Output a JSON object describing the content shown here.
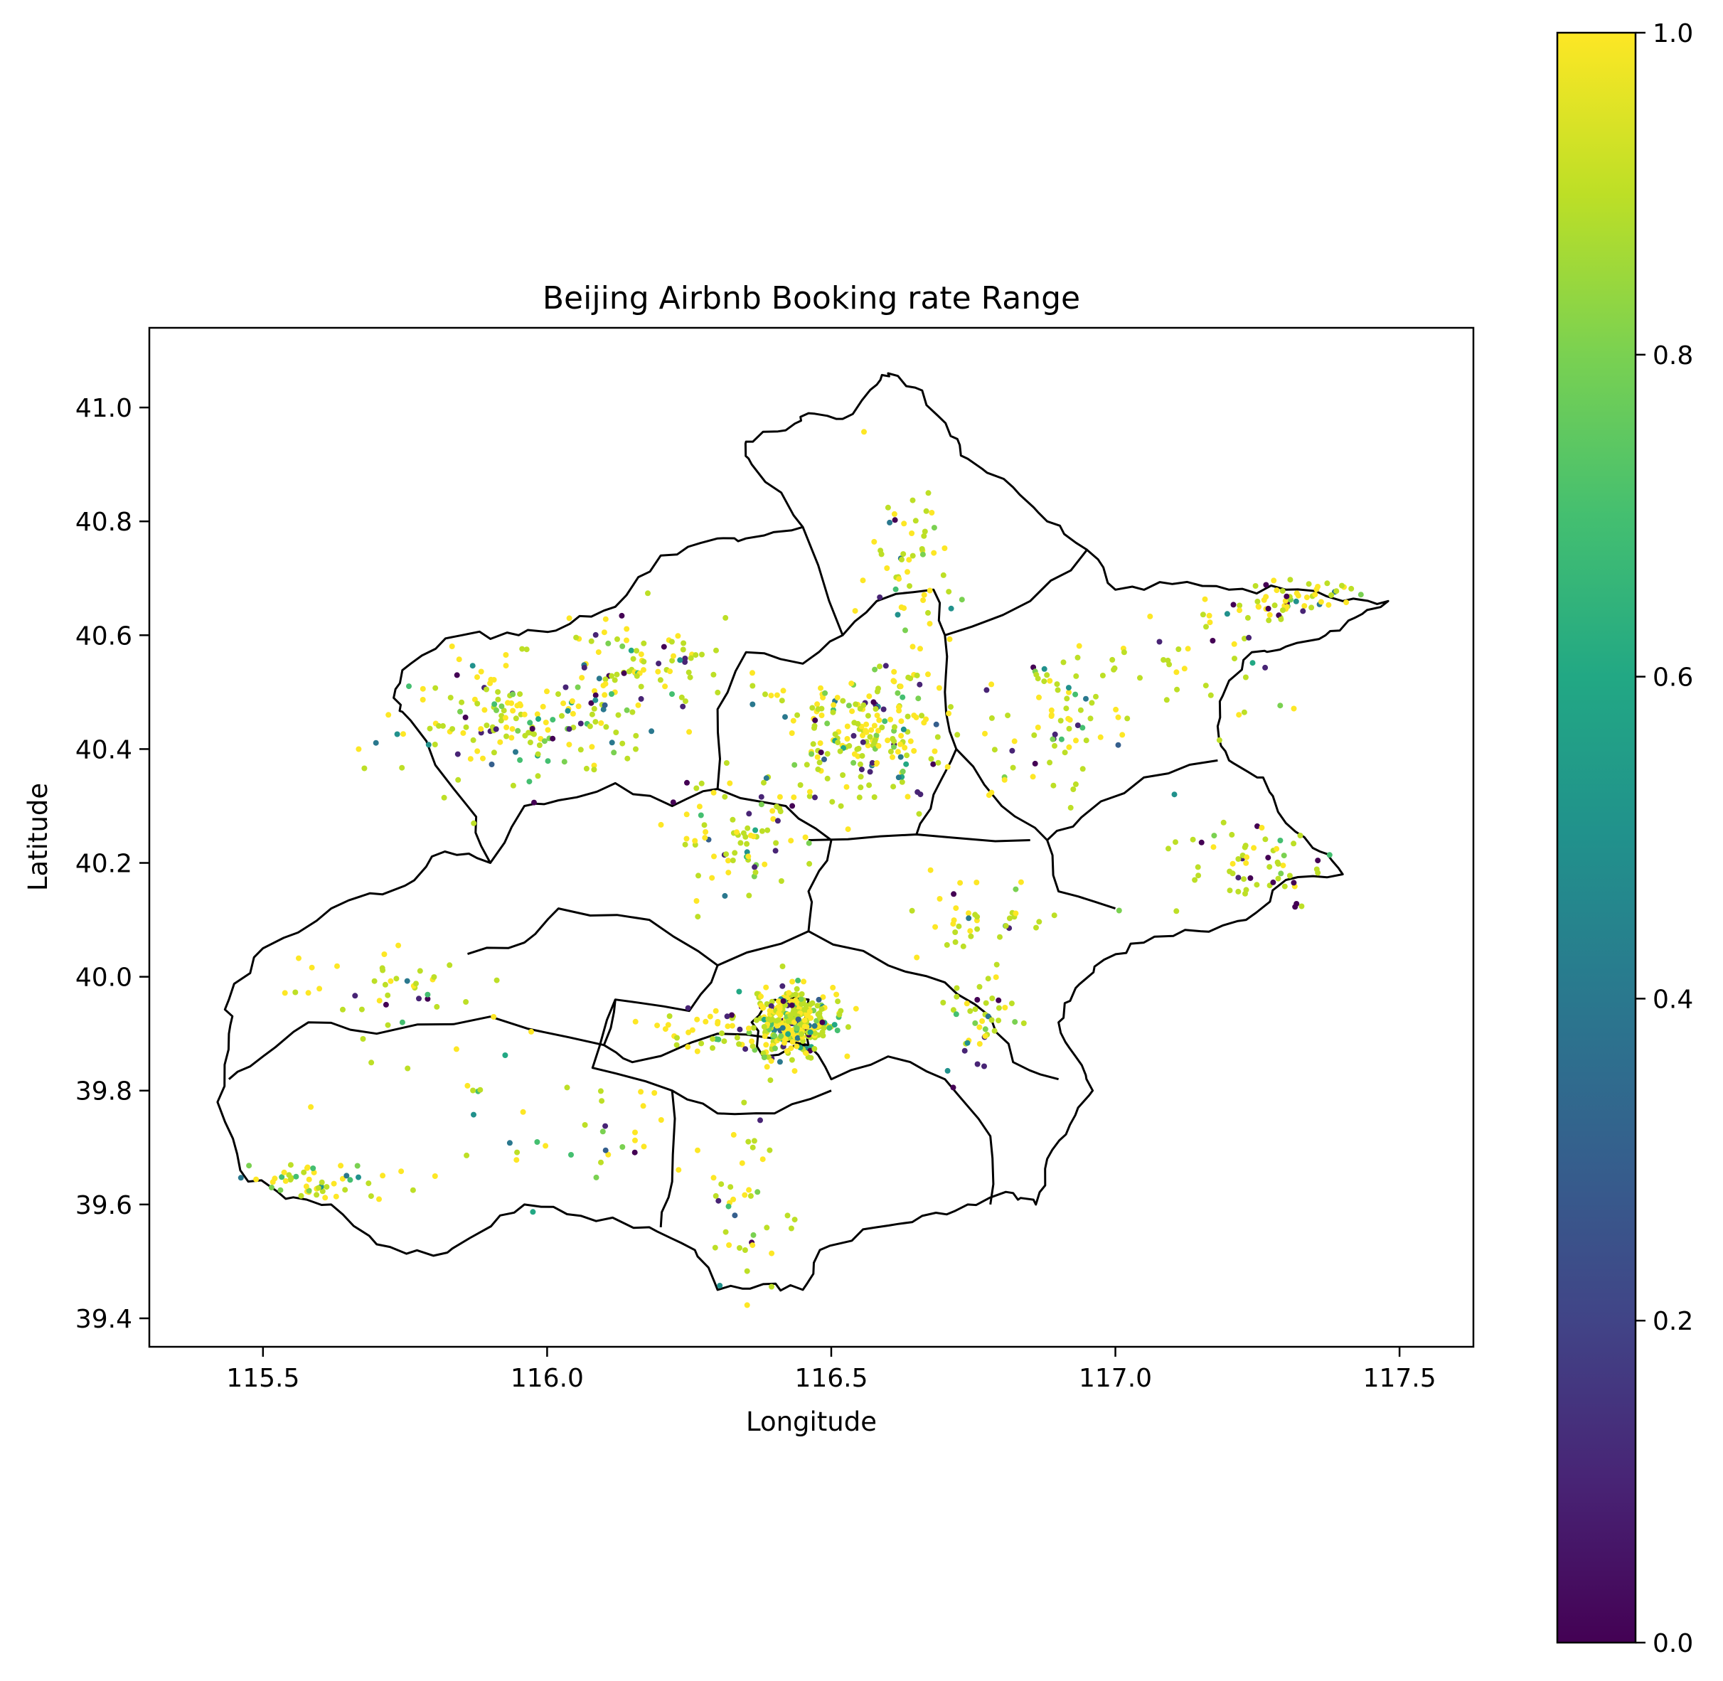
{
  "chart_data": {
    "type": "scatter",
    "title": "Beijing Airbnb Booking rate Range",
    "xlabel": "Longitude",
    "ylabel": "Latitude",
    "xlim": [
      115.3,
      117.63
    ],
    "ylim": [
      39.35,
      41.14
    ],
    "x_ticks": [
      115.5,
      116.0,
      116.5,
      117.0,
      117.5
    ],
    "y_ticks": [
      39.4,
      39.6,
      39.8,
      40.0,
      40.2,
      40.4,
      40.6,
      40.8,
      41.0
    ],
    "tick_labels_x": [
      "115.5",
      "116.0",
      "116.5",
      "117.0",
      "117.5"
    ],
    "tick_labels_y": [
      "39.4",
      "39.6",
      "39.8",
      "40.0",
      "40.2",
      "40.4",
      "40.6",
      "40.8",
      "41.0"
    ],
    "grid": false,
    "colormap": "viridis",
    "colorbar": {
      "range": [
        0.0,
        1.0
      ],
      "ticks": [
        0.0,
        0.2,
        0.4,
        0.6,
        0.8,
        1.0
      ],
      "tick_labels": [
        "0.0",
        "0.2",
        "0.4",
        "0.6",
        "0.8",
        "1.0"
      ]
    },
    "boundary_outline": [
      [
        116.6,
        41.06
      ],
      [
        116.66,
        41.03
      ],
      [
        116.71,
        40.95
      ],
      [
        116.74,
        40.91
      ],
      [
        116.82,
        40.86
      ],
      [
        116.88,
        40.8
      ],
      [
        116.95,
        40.75
      ],
      [
        117.0,
        40.68
      ],
      [
        117.1,
        40.69
      ],
      [
        117.2,
        40.68
      ],
      [
        117.3,
        40.68
      ],
      [
        117.4,
        40.66
      ],
      [
        117.48,
        40.66
      ],
      [
        117.42,
        40.63
      ],
      [
        117.37,
        40.6
      ],
      [
        117.3,
        40.58
      ],
      [
        117.24,
        40.57
      ],
      [
        117.2,
        40.52
      ],
      [
        117.18,
        40.44
      ],
      [
        117.2,
        40.38
      ],
      [
        117.26,
        40.35
      ],
      [
        117.3,
        40.27
      ],
      [
        117.36,
        40.22
      ],
      [
        117.4,
        40.18
      ],
      [
        117.3,
        40.17
      ],
      [
        117.23,
        40.1
      ],
      [
        117.15,
        40.08
      ],
      [
        117.05,
        40.06
      ],
      [
        116.98,
        40.03
      ],
      [
        116.93,
        39.98
      ],
      [
        116.9,
        39.92
      ],
      [
        116.93,
        39.86
      ],
      [
        116.96,
        39.8
      ],
      [
        116.92,
        39.74
      ],
      [
        116.88,
        39.68
      ],
      [
        116.86,
        39.6
      ],
      [
        116.82,
        39.62
      ],
      [
        116.74,
        39.6
      ],
      [
        116.66,
        39.58
      ],
      [
        116.58,
        39.56
      ],
      [
        116.48,
        39.52
      ],
      [
        116.45,
        39.45
      ],
      [
        116.38,
        39.46
      ],
      [
        116.3,
        39.45
      ],
      [
        116.26,
        39.52
      ],
      [
        116.18,
        39.56
      ],
      [
        116.06,
        39.58
      ],
      [
        115.96,
        39.6
      ],
      [
        115.88,
        39.55
      ],
      [
        115.8,
        39.51
      ],
      [
        115.7,
        39.53
      ],
      [
        115.62,
        39.6
      ],
      [
        115.54,
        39.61
      ],
      [
        115.46,
        39.66
      ],
      [
        115.42,
        39.78
      ],
      [
        115.44,
        39.9
      ],
      [
        115.44,
        39.96
      ],
      [
        115.5,
        40.05
      ],
      [
        115.62,
        40.12
      ],
      [
        115.75,
        40.16
      ],
      [
        115.82,
        40.22
      ],
      [
        115.9,
        40.2
      ],
      [
        115.86,
        40.3
      ],
      [
        115.76,
        40.45
      ],
      [
        115.73,
        40.49
      ],
      [
        115.76,
        40.55
      ],
      [
        115.85,
        40.6
      ],
      [
        115.95,
        40.6
      ],
      [
        116.04,
        40.62
      ],
      [
        116.12,
        40.65
      ],
      [
        116.2,
        40.74
      ],
      [
        116.3,
        40.77
      ],
      [
        116.35,
        40.77
      ],
      [
        116.45,
        40.79
      ],
      [
        116.36,
        40.9
      ],
      [
        116.35,
        40.94
      ],
      [
        116.42,
        40.96
      ],
      [
        116.46,
        40.99
      ],
      [
        116.52,
        40.98
      ],
      [
        116.58,
        41.04
      ],
      [
        116.6,
        41.06
      ]
    ]
  }
}
